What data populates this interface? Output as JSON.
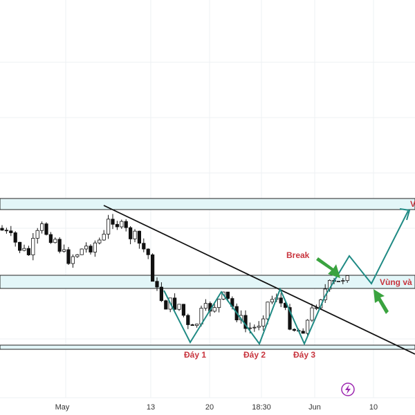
{
  "x_axis": {
    "labels": [
      "May",
      "13",
      "20",
      "18:30",
      "Jun",
      "10"
    ]
  },
  "annotations": {
    "break": "Break",
    "zone": "Vùng và",
    "top": "V",
    "bottoms": [
      "Đáy 1",
      "Đáy 2",
      "Đáy 3"
    ]
  }
}
